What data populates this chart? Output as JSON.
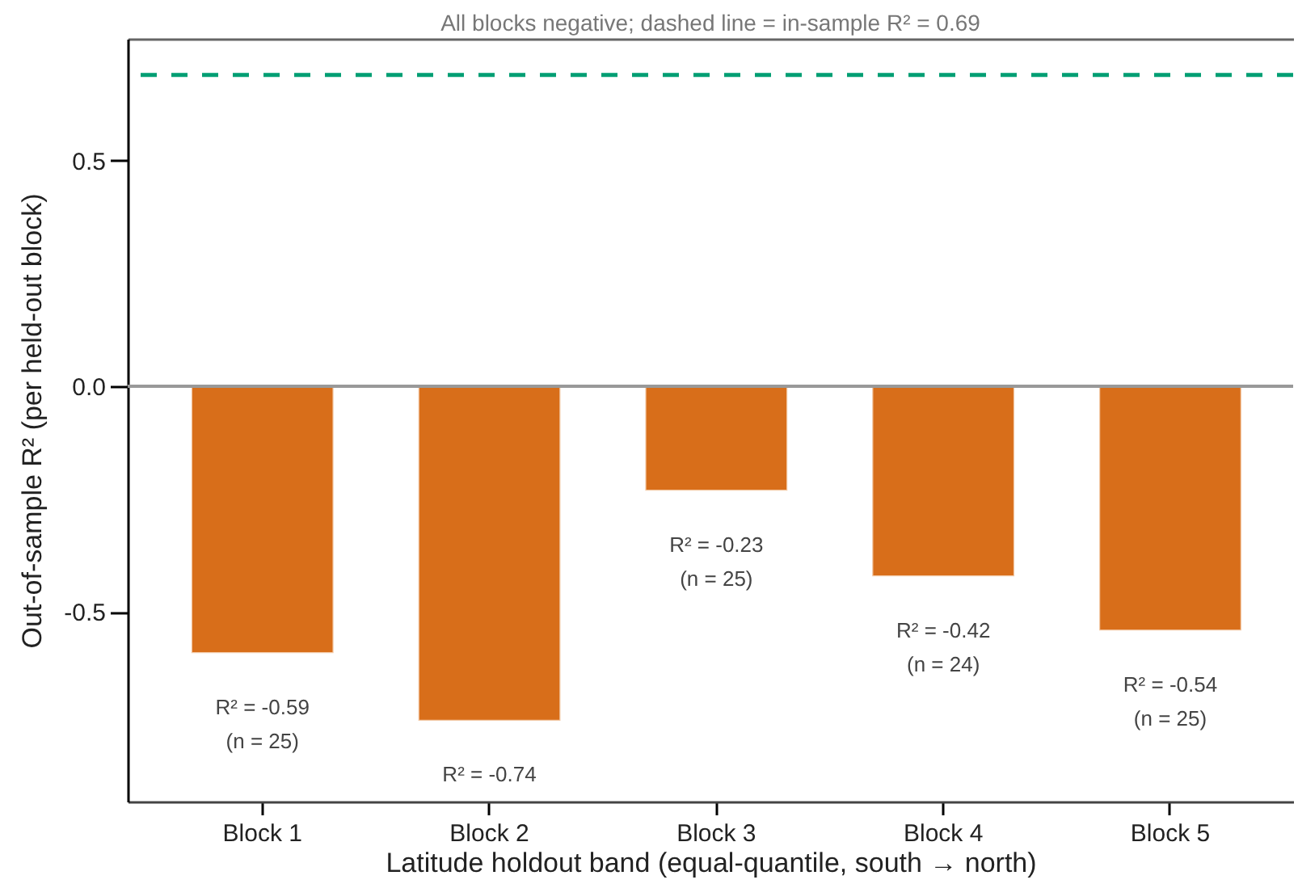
{
  "chart_data": {
    "type": "bar",
    "title": "All blocks negative; dashed line = in-sample R² = 0.69",
    "xlabel": "Latitude holdout band (equal-quantile, south → north)",
    "ylabel": "Out-of-sample R² (per held-out block)",
    "categories": [
      "Block 1",
      "Block 2",
      "Block 3",
      "Block 4",
      "Block 5"
    ],
    "values": [
      -0.59,
      -0.74,
      -0.23,
      -0.42,
      -0.54
    ],
    "color": "#d86e1a",
    "value_labels": [
      "R² = -0.59\n(n = 25)",
      "R² = -0.74",
      "R² = -0.23\n(n = 25)",
      "R² = -0.42\n(n = 24)",
      "R² = -0.54\n(n = 25)"
    ],
    "ylim": [
      -0.92,
      0.77
    ],
    "yticks": [
      -0.5,
      {
        "value": 0,
        "label": "0.0"
      },
      0.5
    ],
    "ref_lines": [
      {
        "axis": "y",
        "value": 0,
        "color": "#999999"
      },
      {
        "axis": "y",
        "value": 0.69,
        "color": "#009e73",
        "line_style": "dashed"
      }
    ]
  }
}
